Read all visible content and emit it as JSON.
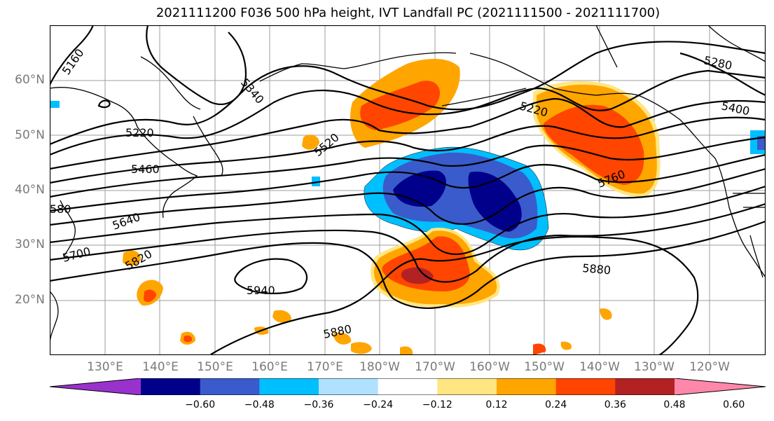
{
  "title": "2021111200 F036 500 hPa height, IVT Landfall PC (2021111500 - 2021111700)",
  "lat_labels": [
    "60°N",
    "50°N",
    "40°N",
    "30°N",
    "20°N"
  ],
  "lon_labels": [
    "130°E",
    "140°E",
    "150°E",
    "160°E",
    "170°E",
    "180°W",
    "170°W",
    "160°W",
    "150°W",
    "140°W",
    "130°W",
    "120°W"
  ],
  "contour_labels": [
    "5160",
    "5340",
    "5220",
    "5520",
    "5460",
    "580",
    "5640",
    "5700",
    "5820",
    "5940",
    "5880",
    "5220",
    "5280",
    "5400",
    "5760",
    "5880"
  ],
  "colorbar": {
    "ticks": [
      "−0.60",
      "−0.48",
      "−0.36",
      "−0.24",
      "−0.12",
      "0.12",
      "0.24",
      "0.36",
      "0.48",
      "0.60"
    ],
    "colors": [
      "#9932cc",
      "#00008b",
      "#3a5bcb",
      "#00bfff",
      "#b0e2ff",
      "#ffffff",
      "#ffe680",
      "#ffa500",
      "#ff4500",
      "#b22222",
      "#ff88aa"
    ]
  },
  "colors": {
    "neg_deep": "#00008b",
    "neg_mid": "#3a5bcb",
    "neg_light": "#00bfff",
    "pos_light": "#ffe680",
    "pos_mid": "#ffa500",
    "pos_strong": "#ff4500",
    "pos_max": "#b22222"
  }
}
